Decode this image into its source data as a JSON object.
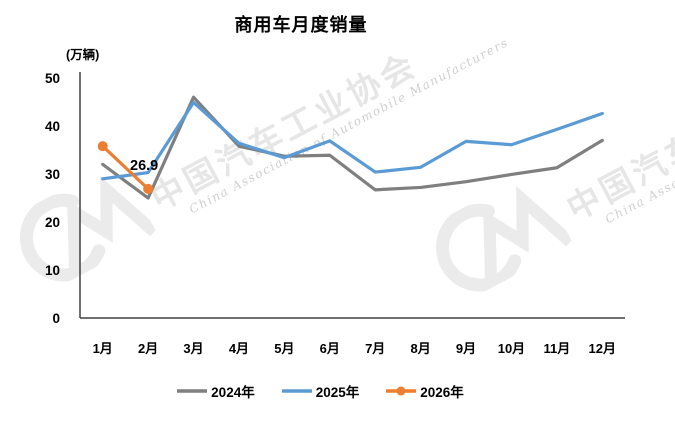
{
  "chart": {
    "title": "商用车月度销量",
    "unit_label": "(万辆)"
  },
  "watermark": {
    "cn": "中国汽车工业协会",
    "en": "China Association of Automobile Manufacturers"
  },
  "chart_data": {
    "type": "line",
    "title": "商用车月度销量",
    "ylabel": "(万辆)",
    "xlabel": "",
    "categories": [
      "1月",
      "2月",
      "3月",
      "4月",
      "5月",
      "6月",
      "7月",
      "8月",
      "9月",
      "10月",
      "11月",
      "12月"
    ],
    "series": [
      {
        "name": "2024年",
        "color": "#7F7F7F",
        "marker": false,
        "values": [
          32.0,
          25.0,
          46.0,
          35.8,
          33.7,
          33.9,
          26.7,
          27.2,
          28.4,
          29.9,
          31.3,
          37.0
        ]
      },
      {
        "name": "2025年",
        "color": "#5B9BD5",
        "marker": false,
        "values": [
          29.0,
          30.3,
          44.9,
          36.4,
          33.4,
          36.9,
          30.4,
          31.4,
          36.8,
          36.1,
          39.3,
          42.6
        ]
      },
      {
        "name": "2026年",
        "color": "#ED7D31",
        "marker": true,
        "values": [
          35.8,
          26.9
        ],
        "data_label": {
          "index": 1,
          "text": "26.9"
        }
      }
    ],
    "ylim": [
      0,
      50
    ],
    "yticks": [
      0,
      10,
      20,
      30,
      40,
      50
    ],
    "grid": false,
    "legend_position": "bottom",
    "axis_color": "#404040"
  }
}
